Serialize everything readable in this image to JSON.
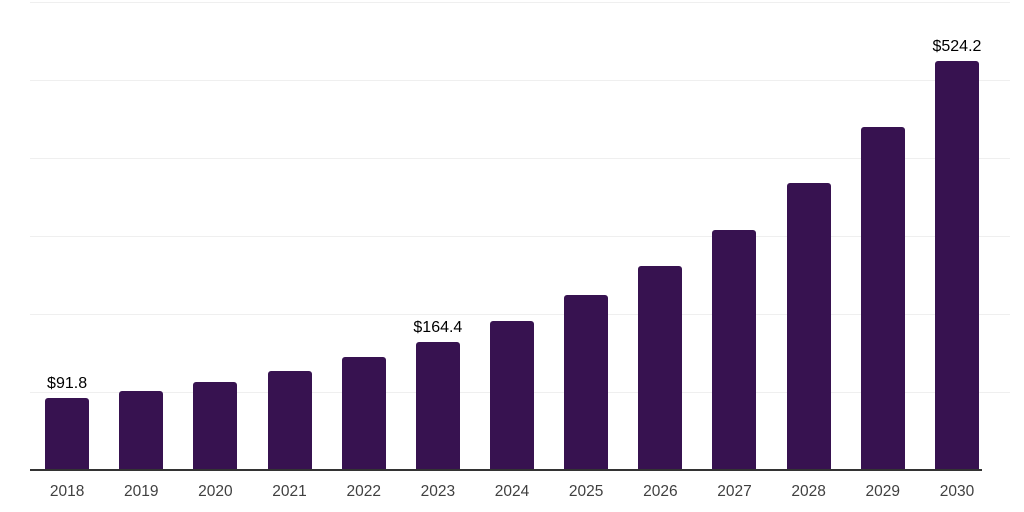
{
  "chart_data": {
    "type": "bar",
    "title": "",
    "xlabel": "",
    "ylabel": "",
    "categories": [
      "2018",
      "2019",
      "2020",
      "2021",
      "2022",
      "2023",
      "2024",
      "2025",
      "2026",
      "2027",
      "2028",
      "2029",
      "2030"
    ],
    "values": [
      91.8,
      100.9,
      112.3,
      127.2,
      144.5,
      164.4,
      191.0,
      224.0,
      261.5,
      307.5,
      367.5,
      439.5,
      524.2
    ],
    "annotations": [
      {
        "category": "2018",
        "text": "$91.8"
      },
      {
        "category": "2023",
        "text": "$164.4"
      },
      {
        "category": "2030",
        "text": "$524.2"
      }
    ],
    "ylim": [
      0,
      600
    ],
    "gridline_values": [
      100,
      200,
      300,
      400,
      500,
      600
    ],
    "grid": true,
    "legend": "none",
    "currency_prefix": "$",
    "colors": {
      "bar": "#371250",
      "axis": "#333333",
      "gridline": "#efefef",
      "x_label": "#404040",
      "value_label": "#000000",
      "background": "#ffffff"
    }
  }
}
